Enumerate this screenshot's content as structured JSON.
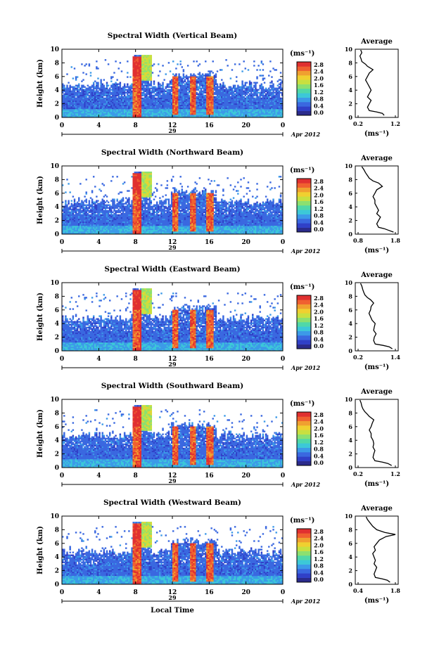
{
  "chart_data": [
    {
      "type": "heatmap",
      "title": "Spectral Width (Vertical Beam)",
      "ylabel": "Height (km)",
      "yticks": [
        "0",
        "2",
        "4",
        "6",
        "8",
        "10"
      ],
      "xticks": [
        "0",
        "4",
        "8",
        "12",
        "16",
        "20",
        "0"
      ],
      "date_mid": "29",
      "date_right": "Apr 2012",
      "colorbar_label": "(ms⁻¹)",
      "colorbar_ticks": [
        "2.8",
        "2.4",
        "2.0",
        "1.6",
        "1.2",
        "0.8",
        "0.4",
        "0.0"
      ],
      "average": {
        "title": "Average",
        "xlabel": "(ms⁻¹)",
        "xticks": [
          "0.2",
          "1.2"
        ],
        "xlim": [
          0.2,
          1.2
        ],
        "yticks": [
          "0",
          "2",
          "4",
          "6",
          "8",
          "10"
        ],
        "height_km": [
          0.3,
          0.6,
          0.8,
          1.0,
          1.5,
          2.0,
          2.5,
          3.0,
          3.5,
          4.0,
          4.5,
          5.0,
          5.5,
          6.0,
          6.5,
          7.0,
          7.5,
          7.8,
          8.2,
          8.6,
          9.0,
          9.5,
          9.9
        ],
        "width": [
          0.9,
          0.85,
          0.7,
          0.5,
          0.45,
          0.5,
          0.55,
          0.45,
          0.5,
          0.55,
          0.5,
          0.45,
          0.4,
          0.45,
          0.5,
          0.6,
          0.45,
          0.4,
          0.3,
          0.28,
          0.25,
          0.3,
          0.27
        ]
      }
    },
    {
      "type": "heatmap",
      "title": "Spectral Width (Northward Beam)",
      "ylabel": "Height (km)",
      "yticks": [
        "0",
        "2",
        "4",
        "6",
        "8",
        "10"
      ],
      "xticks": [
        "0",
        "4",
        "8",
        "12",
        "16",
        "20",
        "0"
      ],
      "date_mid": "29",
      "date_right": "Apr 2012",
      "colorbar_label": "(ms⁻¹)",
      "colorbar_ticks": [
        "2.8",
        "2.4",
        "2.0",
        "1.6",
        "1.2",
        "0.8",
        "0.4",
        "0.0"
      ],
      "average": {
        "title": "Average",
        "xlabel": "(ms⁻¹)",
        "xticks": [
          "0.8",
          "1.8"
        ],
        "xlim": [
          0.8,
          1.8
        ],
        "yticks": [
          "0",
          "2",
          "4",
          "6",
          "8",
          "10"
        ],
        "height_km": [
          0.3,
          0.6,
          0.8,
          1.0,
          1.5,
          2.0,
          2.5,
          3.0,
          3.5,
          4.0,
          4.5,
          5.0,
          5.5,
          6.0,
          6.5,
          7.0,
          7.5,
          7.8,
          8.2,
          8.6,
          9.0,
          9.5,
          9.9
        ],
        "width": [
          1.75,
          1.6,
          1.5,
          1.35,
          1.3,
          1.35,
          1.4,
          1.3,
          1.35,
          1.3,
          1.25,
          1.25,
          1.2,
          1.25,
          1.3,
          1.45,
          1.35,
          1.2,
          1.1,
          1.05,
          1.0,
          0.95,
          0.9
        ]
      }
    },
    {
      "type": "heatmap",
      "title": "Spectral Width (Eastward Beam)",
      "ylabel": "Height (km)",
      "yticks": [
        "0",
        "2",
        "4",
        "6",
        "8",
        "10"
      ],
      "xticks": [
        "0",
        "4",
        "8",
        "12",
        "16",
        "20",
        "0"
      ],
      "date_mid": "29",
      "date_right": "Apr 2012",
      "colorbar_label": "(ms⁻¹)",
      "colorbar_ticks": [
        "2.8",
        "2.4",
        "2.0",
        "1.6",
        "1.2",
        "0.8",
        "0.4",
        "0.0"
      ],
      "average": {
        "title": "Average",
        "xlabel": "(ms⁻¹)",
        "xticks": [
          "0.2",
          "1.4"
        ],
        "xlim": [
          0.2,
          1.4
        ],
        "yticks": [
          "0",
          "2",
          "4",
          "6",
          "8",
          "10"
        ],
        "height_km": [
          0.3,
          0.6,
          0.8,
          1.0,
          1.5,
          2.0,
          2.5,
          3.0,
          3.5,
          4.0,
          4.5,
          5.0,
          5.5,
          6.0,
          6.5,
          7.0,
          7.5,
          7.8,
          8.2,
          8.6,
          9.0,
          9.5,
          9.9
        ],
        "width": [
          1.3,
          1.2,
          1.0,
          0.75,
          0.7,
          0.72,
          0.78,
          0.7,
          0.72,
          0.75,
          0.65,
          0.6,
          0.55,
          0.6,
          0.62,
          0.7,
          0.6,
          0.5,
          0.42,
          0.38,
          0.35,
          0.32,
          0.28
        ]
      }
    },
    {
      "type": "heatmap",
      "title": "Spectral Width (Southward Beam)",
      "ylabel": "Height (km)",
      "yticks": [
        "0",
        "2",
        "4",
        "6",
        "8",
        "10"
      ],
      "xticks": [
        "0",
        "4",
        "8",
        "12",
        "16",
        "20",
        "0"
      ],
      "date_mid": "29",
      "date_right": "Apr 2012",
      "colorbar_label": "(ms⁻¹)",
      "colorbar_ticks": [
        "2.8",
        "2.4",
        "2.0",
        "1.6",
        "1.2",
        "0.8",
        "0.4",
        "0.0"
      ],
      "average": {
        "title": "Average",
        "xlabel": "(ms⁻¹)",
        "xticks": [
          "0.2",
          "1.2"
        ],
        "xlim": [
          0.2,
          1.2
        ],
        "yticks": [
          "0",
          "2",
          "4",
          "6",
          "8",
          "10"
        ],
        "height_km": [
          0.3,
          0.6,
          0.8,
          1.0,
          1.5,
          2.0,
          2.5,
          3.0,
          3.5,
          4.0,
          4.5,
          5.0,
          5.5,
          6.0,
          6.5,
          7.0,
          7.5,
          7.8,
          8.2,
          8.6,
          9.0,
          9.5,
          9.9
        ],
        "width": [
          1.1,
          1.0,
          0.85,
          0.65,
          0.6,
          0.62,
          0.65,
          0.6,
          0.62,
          0.6,
          0.55,
          0.55,
          0.5,
          0.55,
          0.58,
          0.62,
          0.5,
          0.45,
          0.38,
          0.33,
          0.3,
          0.28,
          0.25
        ]
      }
    },
    {
      "type": "heatmap",
      "title": "Spectral Width (Westward Beam)",
      "ylabel": "Height (km)",
      "yticks": [
        "0",
        "2",
        "4",
        "6",
        "8",
        "10"
      ],
      "xticks": [
        "0",
        "4",
        "8",
        "12",
        "16",
        "20",
        "0"
      ],
      "date_mid": "29",
      "date_right": "Apr 2012",
      "xlabel": "Local Time",
      "colorbar_label": "(ms⁻¹)",
      "colorbar_ticks": [
        "2.8",
        "2.4",
        "2.0",
        "1.6",
        "1.2",
        "0.8",
        "0.4",
        "0.0"
      ],
      "average": {
        "title": "Average",
        "xlabel": "(ms⁻¹)",
        "xticks": [
          "0.4",
          "1.8"
        ],
        "xlim": [
          0.4,
          1.8
        ],
        "yticks": [
          "0",
          "2",
          "4",
          "6",
          "8",
          "10"
        ],
        "height_km": [
          0.3,
          0.6,
          0.8,
          1.0,
          1.5,
          2.0,
          2.5,
          3.0,
          3.5,
          4.0,
          4.5,
          5.0,
          5.5,
          6.0,
          6.5,
          7.0,
          7.3,
          7.6,
          8.0,
          8.5,
          9.0,
          9.5,
          9.9
        ],
        "width": [
          1.6,
          1.5,
          1.3,
          1.05,
          1.0,
          1.05,
          1.1,
          1.0,
          1.05,
          1.0,
          0.95,
          1.05,
          1.0,
          1.1,
          1.2,
          1.45,
          1.8,
          1.4,
          1.1,
          0.95,
          0.85,
          0.75,
          0.7
        ]
      }
    }
  ],
  "colors": {
    "colormap": [
      "#2b2b8c",
      "#3040c8",
      "#3a68e0",
      "#3c9ae8",
      "#3cc8d8",
      "#50d8a8",
      "#8ce070",
      "#c8e040",
      "#f0d030",
      "#f0a030",
      "#f06030",
      "#e03030"
    ]
  }
}
